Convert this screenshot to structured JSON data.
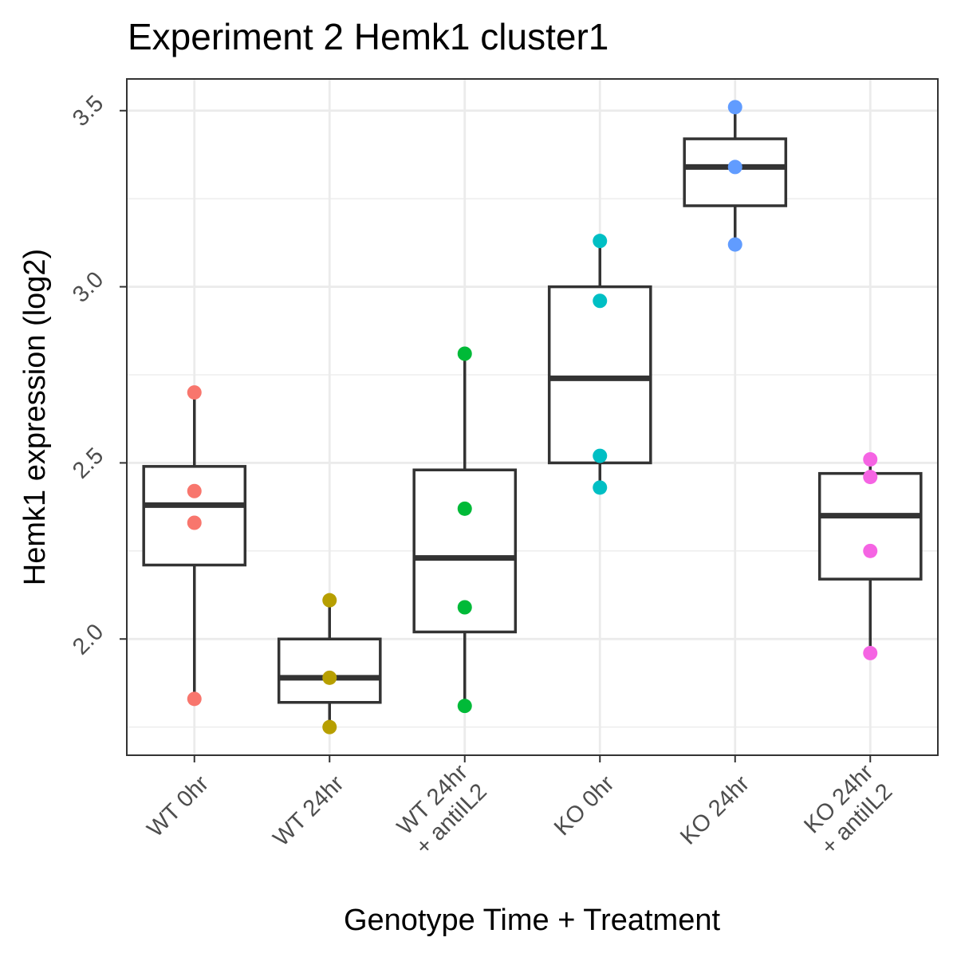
{
  "chart_data": {
    "type": "boxplot",
    "title": "Experiment 2 Hemk1 cluster1",
    "xlabel": "Genotype Time + Treatment",
    "ylabel": "Hemk1 expression (log2)",
    "ylim": [
      1.67,
      3.59
    ],
    "yticks": [
      2.0,
      2.5,
      3.0,
      3.5
    ],
    "yticklabels": [
      "2.0",
      "2.5",
      "3.0",
      "3.5"
    ],
    "grid": true,
    "legend": "none",
    "categories": [
      {
        "name": "WT 0hr",
        "lines": [
          "WT 0hr"
        ],
        "color": "#F8766D",
        "box": {
          "lower": 2.21,
          "q1": 2.21,
          "median": 2.38,
          "q3": 2.49,
          "upper": 2.7,
          "low_whisker": 1.83
        },
        "points": [
          2.7,
          2.42,
          2.33,
          1.83
        ]
      },
      {
        "name": "WT 24hr",
        "lines": [
          "WT 24hr"
        ],
        "color": "#B79F00",
        "box": {
          "q1": 1.82,
          "median": 1.89,
          "q3": 2.0,
          "upper": 2.11,
          "low_whisker": 1.75
        },
        "points": [
          2.11,
          1.89,
          1.75
        ]
      },
      {
        "name": "WT 24hr + antiIL2",
        "lines": [
          "WT 24hr",
          "+ antiIL2"
        ],
        "color": "#00BA38",
        "box": {
          "q1": 2.02,
          "median": 2.23,
          "q3": 2.48,
          "upper": 2.81,
          "low_whisker": 1.81
        },
        "points": [
          2.81,
          2.37,
          2.09,
          1.81
        ]
      },
      {
        "name": "KO 0hr",
        "lines": [
          "KO 0hr"
        ],
        "color": "#00BFC4",
        "box": {
          "q1": 2.5,
          "median": 2.74,
          "q3": 3.0,
          "upper": 3.13,
          "low_whisker": 2.43
        },
        "points": [
          3.13,
          2.96,
          2.52,
          2.43
        ]
      },
      {
        "name": "KO 24hr",
        "lines": [
          "KO 24hr"
        ],
        "color": "#619CFF",
        "box": {
          "q1": 3.23,
          "median": 3.34,
          "q3": 3.42,
          "upper": 3.51,
          "low_whisker": 3.12
        },
        "points": [
          3.51,
          3.34,
          3.12
        ]
      },
      {
        "name": "KO 24hr + antiIL2",
        "lines": [
          "KO 24hr",
          "+ antiIL2"
        ],
        "color": "#F564E3",
        "box": {
          "q1": 2.17,
          "median": 2.35,
          "q3": 2.47,
          "upper": 2.51,
          "low_whisker": 1.96
        },
        "points": [
          2.51,
          2.46,
          2.25,
          1.96
        ]
      }
    ]
  }
}
